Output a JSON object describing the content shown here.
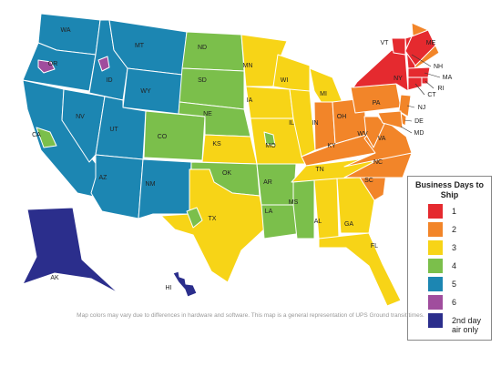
{
  "title": "Business Days to Ship",
  "legend": [
    {
      "label": "1",
      "color": "#e52a2f"
    },
    {
      "label": "2",
      "color": "#f28529"
    },
    {
      "label": "3",
      "color": "#f7d417"
    },
    {
      "label": "4",
      "color": "#7bbf4b"
    },
    {
      "label": "5",
      "color": "#1c86b2"
    },
    {
      "label": "6",
      "color": "#a04d9d"
    },
    {
      "label": "2nd day air only",
      "color": "#2b2e8c"
    }
  ],
  "states": [
    {
      "label": "WA",
      "color": "#1c86b2"
    },
    {
      "label": "OR",
      "color": "#1c86b2"
    },
    {
      "label": "CA",
      "color": "#1c86b2"
    },
    {
      "label": "ID",
      "color": "#1c86b2"
    },
    {
      "label": "NV",
      "color": "#1c86b2"
    },
    {
      "label": "MT",
      "color": "#1c86b2"
    },
    {
      "label": "WY",
      "color": "#1c86b2"
    },
    {
      "label": "UT",
      "color": "#1c86b2"
    },
    {
      "label": "AZ",
      "color": "#1c86b2"
    },
    {
      "label": "CO",
      "color": "#7bbf4b"
    },
    {
      "label": "NM",
      "color": "#1c86b2"
    },
    {
      "label": "ND",
      "color": "#7bbf4b"
    },
    {
      "label": "SD",
      "color": "#7bbf4b"
    },
    {
      "label": "NE",
      "color": "#7bbf4b"
    },
    {
      "label": "KS",
      "color": "#f7d417"
    },
    {
      "label": "OK",
      "color": "#7bbf4b"
    },
    {
      "label": "TX",
      "color": "#f7d417"
    },
    {
      "label": "MN",
      "color": "#f7d417"
    },
    {
      "label": "IA",
      "color": "#f7d417"
    },
    {
      "label": "MO",
      "color": "#f7d417"
    },
    {
      "label": "AR",
      "color": "#7bbf4b"
    },
    {
      "label": "LA",
      "color": "#7bbf4b"
    },
    {
      "label": "WI",
      "color": "#f7d417"
    },
    {
      "label": "IL",
      "color": "#f7d417"
    },
    {
      "label": "MI",
      "color": "#f7d417"
    },
    {
      "label": "IN",
      "color": "#f28529"
    },
    {
      "label": "OH",
      "color": "#f28529"
    },
    {
      "label": "KY",
      "color": "#f28529"
    },
    {
      "label": "TN",
      "color": "#f7d417"
    },
    {
      "label": "MS",
      "color": "#7bbf4b"
    },
    {
      "label": "AL",
      "color": "#f7d417"
    },
    {
      "label": "GA",
      "color": "#f7d417"
    },
    {
      "label": "FL",
      "color": "#f7d417"
    },
    {
      "label": "SC",
      "color": "#f28529"
    },
    {
      "label": "NC",
      "color": "#f28529"
    },
    {
      "label": "VA",
      "color": "#f28529"
    },
    {
      "label": "WV",
      "color": "#f28529"
    },
    {
      "label": "PA",
      "color": "#f28529"
    },
    {
      "label": "NY",
      "color": "#e52a2f"
    },
    {
      "label": "VT",
      "color": "#e52a2f"
    },
    {
      "label": "NH",
      "color": "#e52a2f"
    },
    {
      "label": "ME",
      "color": "#f28529"
    },
    {
      "label": "MA",
      "color": "#e52a2f"
    },
    {
      "label": "RI",
      "color": "#e52a2f"
    },
    {
      "label": "CT",
      "color": "#e52a2f"
    },
    {
      "label": "NJ",
      "color": "#f28529"
    },
    {
      "label": "DE",
      "color": "#f28529"
    },
    {
      "label": "MD",
      "color": "#f28529"
    },
    {
      "label": "AK",
      "color": "#2b2e8c"
    },
    {
      "label": "HI",
      "color": "#2b2e8c"
    }
  ],
  "regions": [
    {
      "color": "#a04d9d"
    },
    {
      "color": "#a04d9d"
    },
    {
      "color": "#7bbf4b"
    },
    {
      "color": "#7bbf4b"
    },
    {
      "color": "#7bbf4b"
    },
    {
      "color": "#e52a2f"
    }
  ],
  "note": "Map colors may vary due to differences in hardware and software. This map is a general representation of UPS Ground transit times."
}
